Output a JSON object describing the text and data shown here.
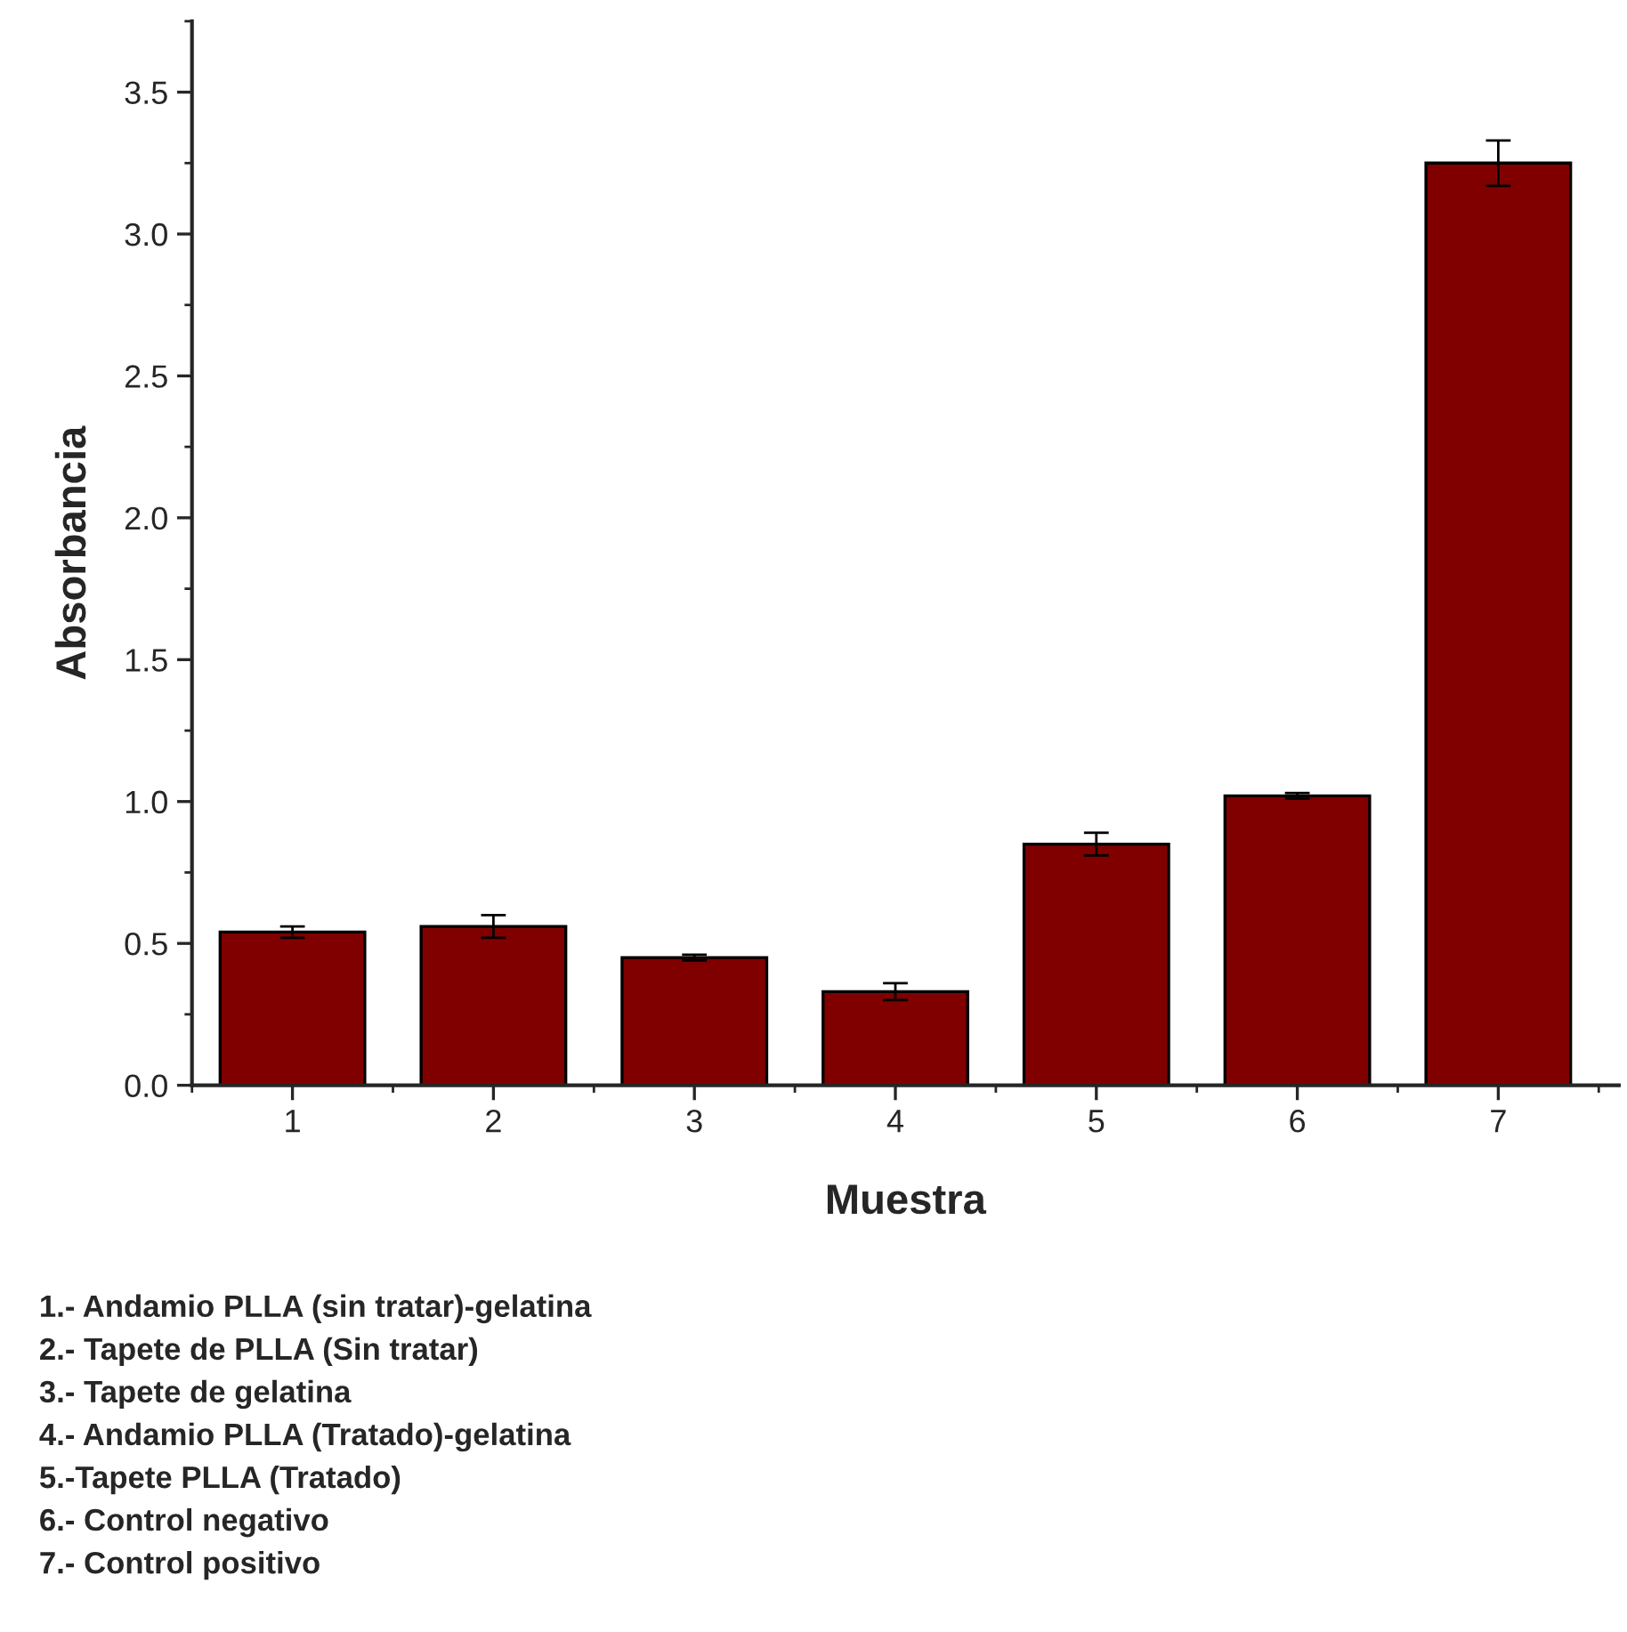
{
  "chart_data": {
    "type": "bar",
    "xlabel": "Muestra",
    "ylabel": "Absorbancia",
    "categories": [
      "1",
      "2",
      "3",
      "4",
      "5",
      "6",
      "7"
    ],
    "values": [
      0.54,
      0.56,
      0.45,
      0.33,
      0.85,
      1.02,
      3.25
    ],
    "errors": [
      0.02,
      0.04,
      0.01,
      0.03,
      0.04,
      0.01,
      0.08
    ],
    "color": "#800000",
    "ylim": [
      0,
      3.75
    ],
    "yticks": [
      {
        "value": 0,
        "label": "0.0"
      },
      0.5,
      {
        "value": 1,
        "label": "1.0"
      },
      1.5,
      {
        "value": 2,
        "label": "2.0"
      },
      2.5,
      {
        "value": 3,
        "label": "3.0"
      },
      3.5
    ],
    "grid": false,
    "annotations": [
      "1.- Andamio PLLA (sin tratar)-gelatina",
      "2.- Tapete de PLLA (Sin tratar)",
      "3.- Tapete de gelatina",
      "4.- Andamio PLLA (Tratado)-gelatina",
      "5.-Tapete PLLA (Tratado)",
      "6.- Control negativo",
      "7.- Control positivo"
    ]
  }
}
